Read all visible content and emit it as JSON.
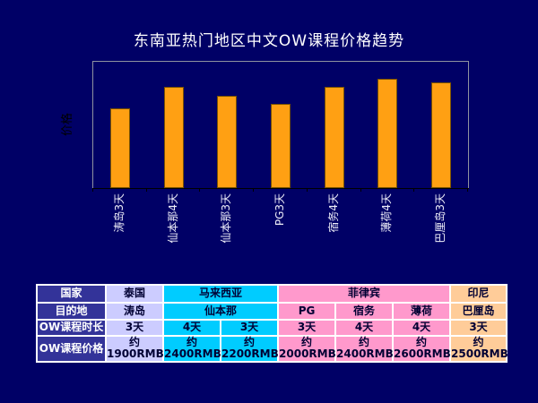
{
  "page": {
    "title": "东南亚热门地区中文OW课程价格趋势",
    "background": "#000066"
  },
  "chart_data": {
    "type": "bar",
    "title": "东南亚热门地区中文OW课程价格趋势",
    "xlabel": "",
    "ylabel": "价格",
    "categories": [
      "涛岛3天",
      "仙本那4天",
      "仙本那3天",
      "PG3天",
      "宿务4天",
      "薄荷4天",
      "巴厘岛3天"
    ],
    "values": [
      1900,
      2400,
      2200,
      2000,
      2400,
      2600,
      2500
    ],
    "unit": "RMB",
    "ylim": [
      0,
      3000
    ],
    "grid": false,
    "legend": false,
    "bar_color": "#FFA013",
    "bar_border_color": "#7A5200",
    "plot_border_color": "#8F92A0",
    "axis_color": "#000000",
    "category_label_color": "#EDEDF8"
  },
  "table": {
    "palette": {
      "header_bg": "#333399",
      "header_text": "#FFFFFF",
      "cell_text": "#000033",
      "border": "#FFFFFF",
      "thailand": "#CCCCFF",
      "malaysia": "#00CCFF",
      "philippines": "#FF99CC",
      "indonesia": "#FFCC99"
    },
    "rows": [
      {
        "name": "country",
        "header": "国家",
        "cells": [
          {
            "text": "泰国",
            "span": 1,
            "bg": "thailand"
          },
          {
            "text": "马来西亚",
            "span": 2,
            "bg": "malaysia"
          },
          {
            "text": "菲律宾",
            "span": 3,
            "bg": "philippines"
          },
          {
            "text": "印尼",
            "span": 1,
            "bg": "indonesia"
          }
        ]
      },
      {
        "name": "destination",
        "header": "目的地",
        "cells": [
          {
            "text": "涛岛",
            "span": 1,
            "bg": "thailand"
          },
          {
            "text": "仙本那",
            "span": 2,
            "bg": "malaysia"
          },
          {
            "text": "PG",
            "span": 1,
            "bg": "philippines"
          },
          {
            "text": "宿务",
            "span": 1,
            "bg": "philippines"
          },
          {
            "text": "薄荷",
            "span": 1,
            "bg": "philippines"
          },
          {
            "text": "巴厘岛",
            "span": 1,
            "bg": "indonesia"
          }
        ]
      },
      {
        "name": "duration",
        "header": "OW课程时长",
        "cells": [
          {
            "text": "3天",
            "span": 1,
            "bg": "thailand"
          },
          {
            "text": "4天",
            "span": 1,
            "bg": "malaysia"
          },
          {
            "text": "3天",
            "span": 1,
            "bg": "malaysia"
          },
          {
            "text": "3天",
            "span": 1,
            "bg": "philippines"
          },
          {
            "text": "4天",
            "span": 1,
            "bg": "philippines"
          },
          {
            "text": "4天",
            "span": 1,
            "bg": "philippines"
          },
          {
            "text": "3天",
            "span": 1,
            "bg": "indonesia"
          }
        ]
      },
      {
        "name": "price",
        "header": "OW课程价格",
        "cells": [
          {
            "text": "约\n1900RMB",
            "span": 1,
            "bg": "thailand"
          },
          {
            "text": "约\n2400RMB",
            "span": 1,
            "bg": "malaysia"
          },
          {
            "text": "约\n2200RMB",
            "span": 1,
            "bg": "malaysia"
          },
          {
            "text": "约\n2000RMB",
            "span": 1,
            "bg": "philippines"
          },
          {
            "text": "约\n2400RMB",
            "span": 1,
            "bg": "philippines"
          },
          {
            "text": "约\n2600RMB",
            "span": 1,
            "bg": "philippines"
          },
          {
            "text": "约\n2500RMB",
            "span": 1,
            "bg": "indonesia"
          }
        ]
      }
    ]
  }
}
